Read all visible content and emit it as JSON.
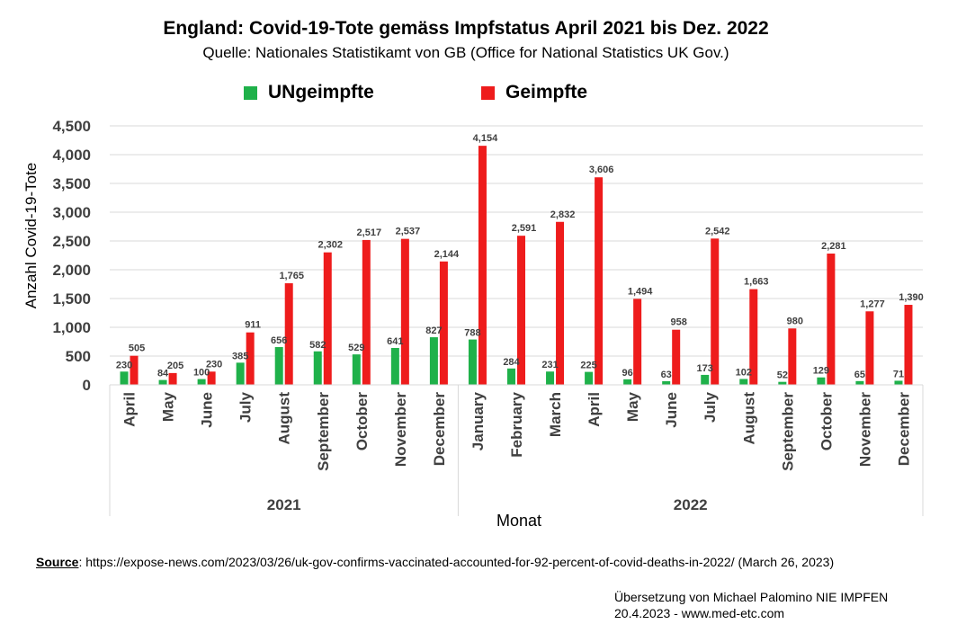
{
  "header": {
    "title": "England: Covid-19-Tote gemäss Impfstatus April 2021 bis Dez. 2022",
    "subtitle": "Quelle: Nationales Statistikamt von GB (Office for National Statistics UK Gov.)"
  },
  "colors": {
    "unvaccinated": "#1fb14a",
    "vaccinated": "#ee1c1c",
    "grid": "#d9d9d9",
    "axis_text": "#404040"
  },
  "chart_data": {
    "type": "bar",
    "title": "England: Covid-19-Tote gemäss Impfstatus April 2021 bis Dez. 2022",
    "xlabel": "Monat",
    "ylabel": "Anzahl Covid-19-Tote",
    "ylim": [
      0,
      4500
    ],
    "yticks": [
      0,
      500,
      1000,
      1500,
      2000,
      2500,
      3000,
      3500,
      4000,
      4500
    ],
    "ytick_labels": [
      "0",
      "500",
      "1,000",
      "1,500",
      "2,000",
      "2,500",
      "3,000",
      "3,500",
      "4,000",
      "4,500"
    ],
    "grid": true,
    "legend_position": "top",
    "categories": [
      "April",
      "May",
      "June",
      "July",
      "August",
      "September",
      "October",
      "November",
      "December",
      "January",
      "February",
      "March",
      "April",
      "May",
      "June",
      "July",
      "August",
      "September",
      "October",
      "November",
      "December"
    ],
    "groups": [
      {
        "label": "2021",
        "count": 9
      },
      {
        "label": "2022",
        "count": 12
      }
    ],
    "series": [
      {
        "name": "UNgeimpfte",
        "color_key": "unvaccinated",
        "values": [
          230,
          84,
          100,
          385,
          656,
          582,
          529,
          641,
          827,
          788,
          284,
          231,
          225,
          96,
          63,
          173,
          102,
          52,
          129,
          65,
          71
        ],
        "labels": [
          "230",
          "84",
          "100",
          "385",
          "656",
          "582",
          "529",
          "641",
          "827",
          "788",
          "284",
          "231",
          "225",
          "96",
          "63",
          "173",
          "102",
          "52",
          "129",
          "65",
          "71"
        ]
      },
      {
        "name": "Geimpfte",
        "color_key": "vaccinated",
        "values": [
          505,
          205,
          230,
          911,
          1765,
          2302,
          2517,
          2537,
          2144,
          4154,
          2591,
          2832,
          3606,
          1494,
          958,
          2542,
          1663,
          980,
          2281,
          1277,
          1390
        ],
        "labels": [
          "505",
          "205",
          "230",
          "911",
          "1,765",
          "2,302",
          "2,517",
          "2,537",
          "2,144",
          "4,154",
          "2,591",
          "2,832",
          "3,606",
          "1,494",
          "958",
          "2,542",
          "1,663",
          "980",
          "2,281",
          "1,277",
          "1,390"
        ]
      }
    ]
  },
  "footer": {
    "source_label": "Source",
    "source_text": ": https://expose-news.com/2023/03/26/uk-gov-confirms-vaccinated-accounted-for-92-percent-of-covid-deaths-in-2022/ (March 26, 2023)",
    "credit_line1": "Übersetzung von Michael Palomino NIE IMPFEN",
    "credit_line2": "20.4.2023 - www.med-etc.com"
  }
}
